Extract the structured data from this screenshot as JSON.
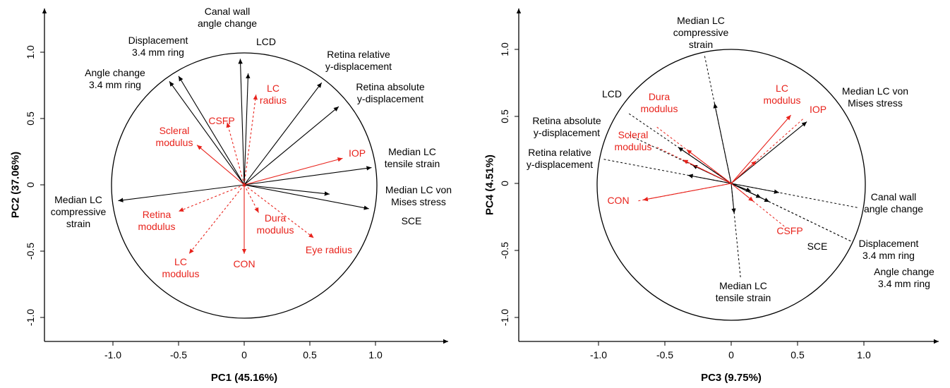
{
  "colors": {
    "response": "#000000",
    "parameter": "#e8231c",
    "axis": "#000000"
  },
  "chart_data": [
    {
      "type": "scatter",
      "title": "",
      "xlabel": "PC1 (45.16%)",
      "ylabel": "PC2 (37.06%)",
      "xlim": [
        -1.5,
        1.5
      ],
      "ylim": [
        -1.18,
        1.3
      ],
      "xticks": [
        -1.0,
        -0.5,
        0,
        0.5,
        1.0
      ],
      "xtick_labels": [
        "-1.0",
        "-0.5",
        "0",
        "0.5",
        "1.0"
      ],
      "yticks": [
        -1.0,
        -0.5,
        0,
        0.5,
        1.0
      ],
      "ytick_labels": [
        "-1.0",
        "-0.5",
        "0",
        "0.5",
        "1.0"
      ],
      "unit_circle": true,
      "vectors": [
        {
          "label": [
            "Canal wall",
            "angle change"
          ],
          "x": -0.03,
          "y": 0.95,
          "dashed": false,
          "group": "response"
        },
        {
          "label": [
            "LCD"
          ],
          "x": 0.03,
          "y": 0.84,
          "dashed": false,
          "group": "response"
        },
        {
          "label": [
            "Displacement",
            "3.4 mm ring"
          ],
          "x": -0.5,
          "y": 0.82,
          "dashed": false,
          "group": "response"
        },
        {
          "label": [
            "Angle change",
            "3.4 mm ring"
          ],
          "x": -0.57,
          "y": 0.78,
          "dashed": false,
          "group": "response"
        },
        {
          "label": [
            "Retina relative",
            "y-displacement"
          ],
          "x": 0.59,
          "y": 0.77,
          "dashed": false,
          "group": "response"
        },
        {
          "label": [
            "Retina absolute",
            "y-displacement"
          ],
          "x": 0.72,
          "y": 0.59,
          "dashed": false,
          "group": "response"
        },
        {
          "label": [
            "Median LC",
            "tensile strain"
          ],
          "x": 0.97,
          "y": 0.13,
          "dashed": false,
          "group": "response"
        },
        {
          "label": [
            "Median LC von",
            "Mises stress"
          ],
          "x": 0.95,
          "y": -0.18,
          "dashed": false,
          "group": "response"
        },
        {
          "label": [
            "SCE"
          ],
          "x": 0.65,
          "y": -0.07,
          "dashed": false,
          "group": "response"
        },
        {
          "label": [
            "Median LC",
            "compressive",
            "strain"
          ],
          "x": -0.96,
          "y": -0.12,
          "dashed": false,
          "group": "response"
        },
        {
          "label": [
            "LC",
            "radius"
          ],
          "x": 0.09,
          "y": 0.68,
          "dashed": true,
          "group": "parameter"
        },
        {
          "label": [
            "CSFP"
          ],
          "x": -0.13,
          "y": 0.47,
          "dashed": true,
          "group": "parameter"
        },
        {
          "label": [
            "Scleral",
            "modulus"
          ],
          "x": -0.36,
          "y": 0.3,
          "dashed": false,
          "group": "parameter"
        },
        {
          "label": [
            "IOP"
          ],
          "x": 0.75,
          "y": 0.2,
          "dashed": false,
          "group": "parameter"
        },
        {
          "label": [
            "Retina",
            "modulus"
          ],
          "x": -0.5,
          "y": -0.2,
          "dashed": true,
          "group": "parameter"
        },
        {
          "label": [
            "LC",
            "modulus"
          ],
          "x": -0.42,
          "y": -0.52,
          "dashed": true,
          "group": "parameter"
        },
        {
          "label": [
            "CON"
          ],
          "x": 0.0,
          "y": -0.52,
          "dashed": false,
          "group": "parameter"
        },
        {
          "label": [
            "Dura",
            "modulus"
          ],
          "x": 0.11,
          "y": -0.21,
          "dashed": true,
          "group": "parameter"
        },
        {
          "label": [
            "Eye radius"
          ],
          "x": 0.53,
          "y": -0.4,
          "dashed": true,
          "group": "parameter"
        }
      ]
    },
    {
      "type": "scatter",
      "title": "",
      "xlabel": "PC3 (9.75%)",
      "ylabel": "PC4 (4.51%)",
      "xlim": [
        -1.5,
        1.5
      ],
      "ylim": [
        -1.18,
        1.3
      ],
      "xticks": [
        -1.0,
        -0.5,
        0,
        0.5,
        1.0
      ],
      "xtick_labels": [
        "-1.0",
        "-0.5",
        "0",
        "0.5",
        "1.0"
      ],
      "yticks": [
        -1.0,
        -0.5,
        0,
        0.5,
        1.0
      ],
      "ytick_labels": [
        "-1.0",
        "-0.5",
        "0",
        "0.5",
        "1.0"
      ],
      "unit_circle": true,
      "vectors": [
        {
          "label": [
            "Median LC",
            "compressive",
            "strain"
          ],
          "x": -0.2,
          "y": 0.95,
          "dashed": true,
          "group": "response",
          "arrow_at": 0.63
        },
        {
          "label": [
            "LCD"
          ],
          "x": -0.77,
          "y": 0.52,
          "dashed": true,
          "group": "response",
          "arrow_at": 0.52
        },
        {
          "label": [
            "Retina absolute",
            "y-displacement"
          ],
          "x": -0.77,
          "y": 0.36,
          "dashed": true,
          "group": "response",
          "arrow_at": 0.38
        },
        {
          "label": [
            "Retina relative",
            "y-displacement"
          ],
          "x": -0.96,
          "y": 0.18,
          "dashed": true,
          "group": "response",
          "arrow_at": 0.34
        },
        {
          "label": [
            "Median LC von",
            "Mises stress"
          ],
          "x": 0.57,
          "y": 0.46,
          "dashed": false,
          "group": "response"
        },
        {
          "label": [
            "Canal wall",
            "angle change"
          ],
          "x": 0.95,
          "y": -0.18,
          "dashed": true,
          "group": "response",
          "arrow_at": 0.38
        },
        {
          "label": [
            "Displacement",
            "3.4 mm ring"
          ],
          "x": 0.9,
          "y": -0.43,
          "dashed": true,
          "group": "response",
          "arrow_at": 0.32
        },
        {
          "label": [
            "Angle change",
            "3.4 mm ring"
          ],
          "x": 0.9,
          "y": -0.43,
          "dashed": true,
          "group": "response",
          "arrow_at": 0.25
        },
        {
          "label": [
            "SCE"
          ],
          "x": 0.15,
          "y": -0.06,
          "dashed": false,
          "group": "response"
        },
        {
          "label": [
            "Median LC",
            "tensile strain"
          ],
          "x": 0.07,
          "y": -0.7,
          "dashed": true,
          "group": "response",
          "arrow_at": 0.32
        },
        {
          "label": [
            "Dura",
            "modulus"
          ],
          "x": -0.56,
          "y": 0.42,
          "dashed": true,
          "group": "parameter",
          "arrow_at": 0.6
        },
        {
          "label": [
            "Scleral",
            "modulus"
          ],
          "x": -0.56,
          "y": 0.27,
          "dashed": true,
          "group": "parameter",
          "arrow_at": 0.65
        },
        {
          "label": [
            "LC",
            "modulus"
          ],
          "x": 0.45,
          "y": 0.51,
          "dashed": false,
          "group": "parameter"
        },
        {
          "label": [
            "IOP"
          ],
          "x": 0.54,
          "y": 0.48,
          "dashed": true,
          "group": "parameter",
          "arrow_at": 0.35
        },
        {
          "label": [
            "CON"
          ],
          "x": -0.7,
          "y": -0.13,
          "dashed": true,
          "group": "parameter",
          "arrow_at": 0.95
        },
        {
          "label": [
            "CSFP"
          ],
          "x": 0.4,
          "y": -0.32,
          "dashed": true,
          "group": "parameter",
          "arrow_at": 0.42
        }
      ]
    }
  ]
}
